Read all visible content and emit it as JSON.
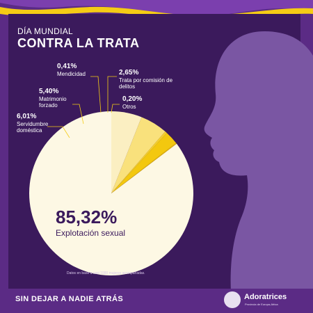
{
  "header": {
    "subtitle": "DÍA MUNDIAL",
    "title": "CONTRA LA TRATA"
  },
  "chart_data": {
    "type": "pie",
    "slices": [
      {
        "label": "Explotación sexual",
        "value": 85.32,
        "value_label": "85,32%",
        "color": "#fdf8e4"
      },
      {
        "label": "Servidumbre doméstica",
        "value": 6.01,
        "value_label": "6,01%",
        "color": "#fbefc2"
      },
      {
        "label": "Matrimonio forzado",
        "value": 5.4,
        "value_label": "5,40%",
        "color": "#f9e17c"
      },
      {
        "label": "Mendicidad",
        "value": 0.41,
        "value_label": "0,41%",
        "color": "#f5cf2d"
      },
      {
        "label": "Trata por comisión de delitos",
        "value": 2.65,
        "value_label": "2,65%",
        "color": "#f3c80f"
      },
      {
        "label": "Otros",
        "value": 0.2,
        "value_label": "0,20%",
        "color": "#e4b60a"
      }
    ],
    "note": "Datos en base a casi 1000 mujeres acompañadas."
  },
  "footer": {
    "slogan": "SIN DEJAR A NADIE ATRÁS",
    "brand": "Adoratrices",
    "brand_sub": "Provincia de Europa-Africa"
  },
  "colors": {
    "background": "#5b2b85",
    "card": "#3b1a5c",
    "silhouette": "#7a56a3",
    "accent": "#f3c80f"
  }
}
